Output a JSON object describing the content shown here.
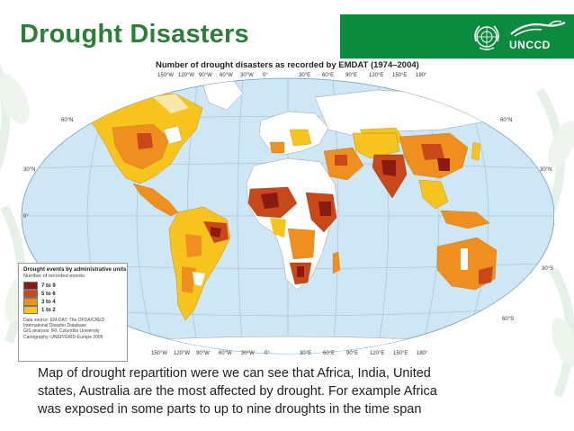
{
  "slide": {
    "title": "Drought Disasters",
    "caption_lines": [
      "Map of drought repartition were we can see that Africa, India, United",
      "states, Australia are the most affected by drought. For example Africa",
      "was exposed in some parts to up to nine droughts in the time span"
    ]
  },
  "logos": {
    "un_emblem_icon": "un-emblem-icon",
    "unccd_label": "UNCCD"
  },
  "map": {
    "title": "Number of drought disasters as recorded by EMDAT (1974–2004)",
    "longitude_labels": [
      "150°W",
      "120°W",
      "90°W",
      "60°W",
      "30°W",
      "0°",
      "30°E",
      "60°E",
      "90°E",
      "120°E",
      "150°E",
      "180°"
    ],
    "latitude_labels_left": [
      "60°N",
      "30°N",
      "0°"
    ],
    "latitude_labels_right": [
      "60°N",
      "30°N",
      "30°S",
      "60°S"
    ],
    "legend": {
      "title": "Drought events by administrative units",
      "subtitle": "Number of recorded events",
      "classes": [
        {
          "label": "7 to 9",
          "color": "#8b1a10"
        },
        {
          "label": "5 to 6",
          "color": "#c8481a"
        },
        {
          "label": "3 to 4",
          "color": "#ef8f1f"
        },
        {
          "label": "1 to 2",
          "color": "#f6c41c"
        }
      ],
      "source_lines": [
        "Data source: EM-DAT: The OFDA/CRED",
        "International Disaster Database",
        "GIS analysis: IRI, Columbia University",
        "Cartography: UNEP/GRID-Europe 2009"
      ]
    },
    "colors": {
      "ocean": "#cfe6f4",
      "land_no_data": "#ffffff",
      "graticule": "#8fb9d6"
    }
  }
}
